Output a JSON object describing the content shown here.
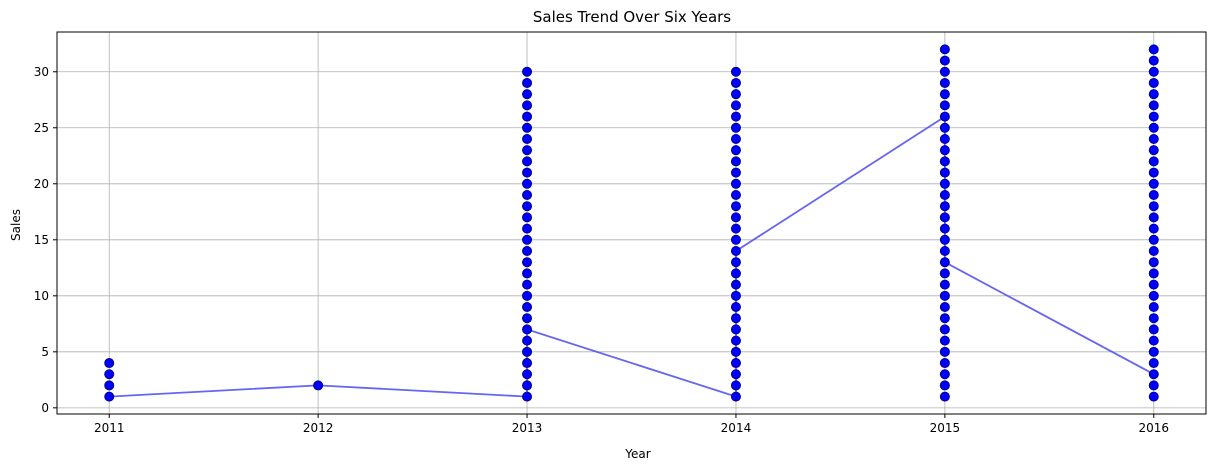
{
  "chart_data": {
    "type": "scatter",
    "title": "Sales Trend Over Six Years",
    "xlabel": "Year",
    "ylabel": "Sales",
    "x_ticks": [
      "2011",
      "2012",
      "2013",
      "2014",
      "2015",
      "2016"
    ],
    "y_ticks": [
      0,
      5,
      10,
      15,
      20,
      25,
      30
    ],
    "xlim": [
      2010.75,
      2016.25
    ],
    "ylim": [
      -0.55,
      33.55
    ],
    "grid": true,
    "colors": {
      "points": "#0000ff",
      "point_edge": "#00008b",
      "line": "#5555ee",
      "grid": "#b0b0b0"
    },
    "point_groups": [
      {
        "year": 2011,
        "values": [
          1,
          2,
          3,
          4
        ]
      },
      {
        "year": 2012,
        "values": [
          2
        ]
      },
      {
        "year": 2013,
        "values": [
          1,
          2,
          3,
          4,
          5,
          6,
          7,
          8,
          9,
          10,
          11,
          12,
          13,
          14,
          15,
          16,
          17,
          18,
          19,
          20,
          21,
          22,
          23,
          24,
          25,
          26,
          27,
          28,
          29,
          30
        ]
      },
      {
        "year": 2014,
        "values": [
          1,
          2,
          3,
          4,
          5,
          6,
          7,
          8,
          9,
          10,
          11,
          12,
          13,
          14,
          15,
          16,
          17,
          18,
          19,
          20,
          21,
          22,
          23,
          24,
          25,
          26,
          27,
          28,
          29,
          30
        ]
      },
      {
        "year": 2015,
        "values": [
          1,
          2,
          3,
          4,
          5,
          6,
          7,
          8,
          9,
          10,
          11,
          12,
          13,
          14,
          15,
          16,
          17,
          18,
          19,
          20,
          21,
          22,
          23,
          24,
          25,
          26,
          27,
          28,
          29,
          30,
          31,
          32
        ]
      },
      {
        "year": 2016,
        "values": [
          1,
          2,
          3,
          4,
          5,
          6,
          7,
          8,
          9,
          10,
          11,
          12,
          13,
          14,
          15,
          16,
          17,
          18,
          19,
          20,
          21,
          22,
          23,
          24,
          25,
          26,
          27,
          28,
          29,
          30,
          31,
          32
        ]
      }
    ],
    "line": [
      [
        2011,
        1
      ],
      [
        2012,
        2
      ],
      [
        2013,
        1
      ],
      [
        2013,
        7
      ],
      [
        2014,
        1
      ],
      [
        2014,
        14
      ],
      [
        2015,
        26
      ],
      [
        2015,
        13
      ],
      [
        2016,
        3
      ]
    ]
  }
}
